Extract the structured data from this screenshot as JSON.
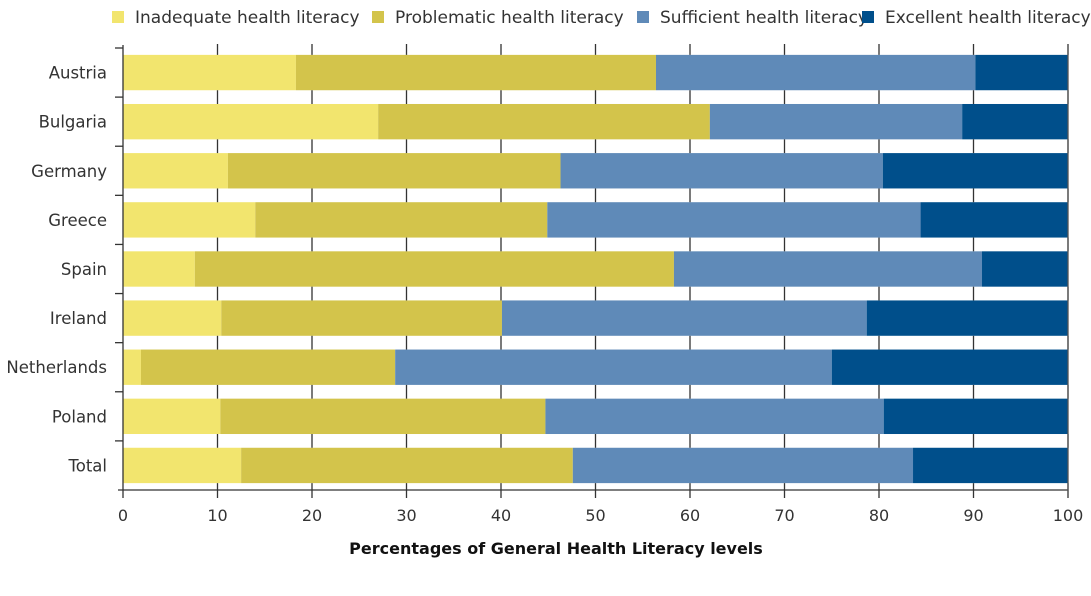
{
  "chart_data": {
    "type": "bar",
    "orientation": "horizontal",
    "stacked": true,
    "title": "",
    "xlabel": "Percentages of General Health Literacy levels",
    "ylabel": "",
    "xlim": [
      0,
      100
    ],
    "x_ticks": [
      "0",
      "10",
      "20",
      "30",
      "40",
      "50",
      "60",
      "70",
      "80",
      "90",
      "100"
    ],
    "grid": "vertical ticks only",
    "legend_position": "top",
    "categories": [
      "Austria",
      "Bulgaria",
      "Germany",
      "Greece",
      "Spain",
      "Ireland",
      "Netherlands",
      "Poland",
      "Total"
    ],
    "series": [
      {
        "name": "Inadequate health literacy",
        "color": "#f2e56e",
        "values": [
          18.3,
          27.0,
          11.1,
          14.0,
          7.6,
          10.4,
          1.9,
          10.3,
          12.5
        ]
      },
      {
        "name": "Problematic health literacy",
        "color": "#d3c44b",
        "values": [
          38.1,
          35.1,
          35.2,
          30.9,
          50.7,
          29.7,
          26.9,
          34.4,
          35.1
        ]
      },
      {
        "name": "Sufficient health literacy",
        "color": "#5f8ab8",
        "values": [
          33.8,
          26.7,
          34.1,
          39.5,
          32.6,
          38.6,
          46.2,
          35.8,
          36.0
        ]
      },
      {
        "name": "Excellent health literacy",
        "color": "#004f8b",
        "values": [
          9.8,
          11.2,
          19.6,
          15.6,
          9.1,
          21.3,
          25.0,
          19.5,
          16.4
        ]
      }
    ]
  }
}
